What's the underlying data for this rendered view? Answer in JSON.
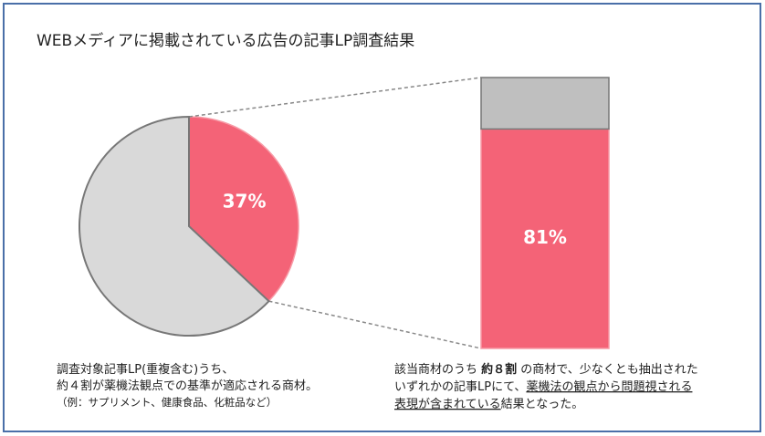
{
  "title": "WEBメディアに掲載されている広告の記事LP調査結果",
  "chart_data": [
    {
      "type": "pie",
      "values": [
        37,
        63
      ],
      "value_labels": [
        "37%",
        null
      ],
      "colors": [
        "#f46377",
        "#d9d9d9"
      ]
    },
    {
      "type": "bar",
      "series": [
        {
          "values": [
            81
          ],
          "value_labels": [
            "81%"
          ],
          "color": "#f46377"
        },
        {
          "values": [
            19
          ],
          "color": "#bfbfbf"
        }
      ]
    }
  ],
  "captions": {
    "left": [
      [
        {
          "text": "調査対象記事LP(重複含む)うち、"
        }
      ],
      [
        {
          "text": "約４割が薬機法観点での基準が適応される商材。"
        }
      ],
      [
        {
          "text": "（例：サプリメント、健康食品、化粧品など）",
          "style": "small"
        }
      ]
    ],
    "right": [
      [
        {
          "text": "該当商材のうち "
        },
        {
          "text": "約８割",
          "style": "bold"
        },
        {
          "text": " の商材で、少なくとも抽出された"
        }
      ],
      [
        {
          "text": "いずれかの記事LPにて、"
        },
        {
          "text": "薬機法の観点から問題視される",
          "style": "underline"
        }
      ],
      [
        {
          "text": "表現が含まれている",
          "style": "underline"
        },
        {
          "text": "結果となった。"
        }
      ]
    ]
  }
}
